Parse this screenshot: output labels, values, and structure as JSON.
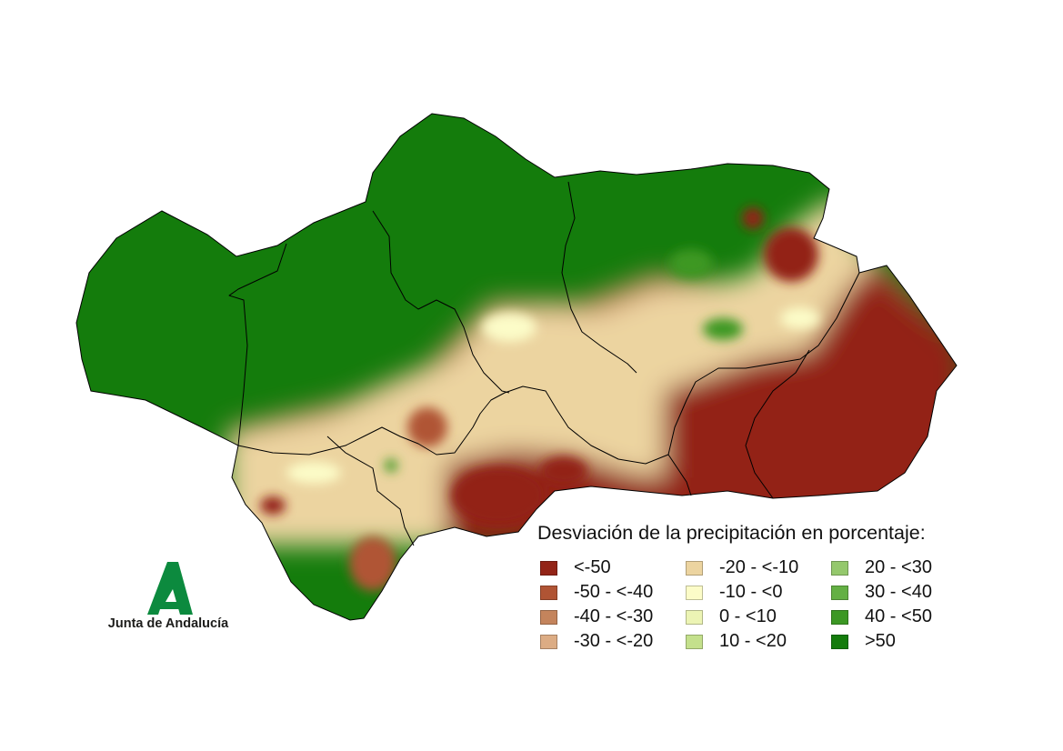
{
  "legend": {
    "title": "Desviación de la precipitación en porcentaje:",
    "items": [
      {
        "label": "<-50",
        "color": "#932417"
      },
      {
        "label": "-50 - <-40",
        "color": "#b05434"
      },
      {
        "label": "-40 - <-30",
        "color": "#c4845c"
      },
      {
        "label": "-30 - <-20",
        "color": "#dcac84"
      },
      {
        "label": "-20 - <-10",
        "color": "#ecd4a0"
      },
      {
        "label": "-10 - <0",
        "color": "#fcfcc8"
      },
      {
        "label": "0 - <10",
        "color": "#ecf4b4"
      },
      {
        "label": "10 - <20",
        "color": "#c4e08c"
      },
      {
        "label": "20 - <30",
        "color": "#94c86c"
      },
      {
        "label": "30 - <40",
        "color": "#64b044"
      },
      {
        "label": "40 - <50",
        "color": "#3c9824"
      },
      {
        "label": ">50",
        "color": "#147c0c"
      }
    ]
  },
  "logo": {
    "text": "Junta de Andalucía",
    "color": "#0c8a3e"
  }
}
